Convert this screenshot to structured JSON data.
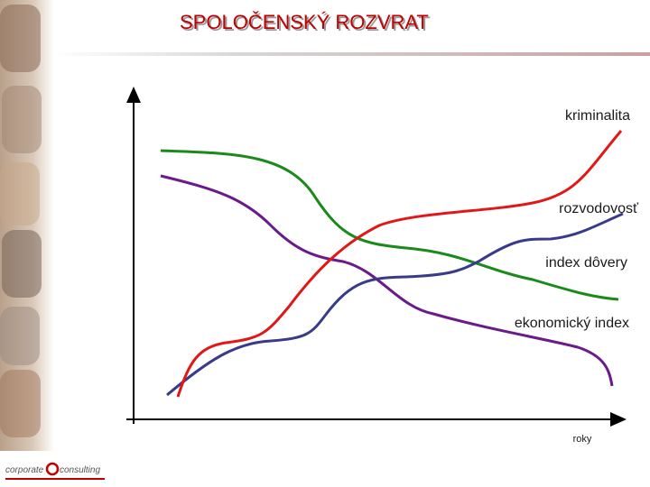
{
  "title": "SPOLOČENSKÝ ROZVRAT",
  "curves": [
    {
      "label": "kriminalita"
    },
    {
      "label": "rozvodovosť"
    },
    {
      "label": "index dôvery"
    },
    {
      "label": "ekonomický index"
    }
  ],
  "x_axis_label": "roky",
  "logo": {
    "left": "corporate",
    "right": "consulting"
  }
}
